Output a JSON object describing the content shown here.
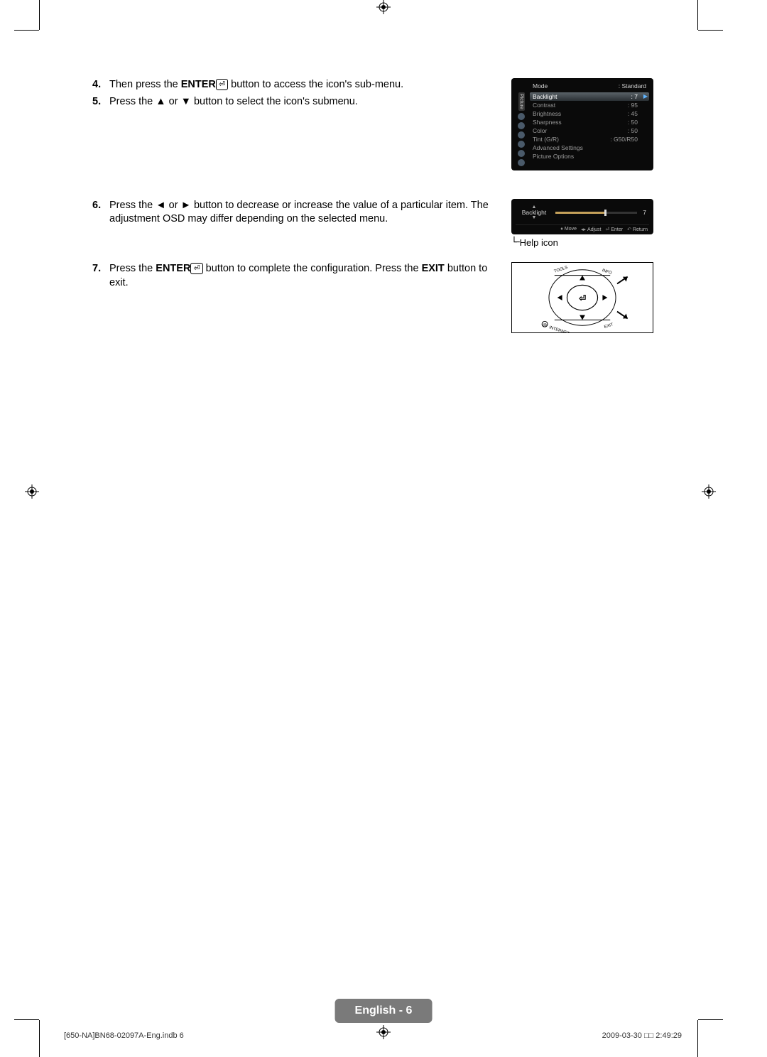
{
  "steps": {
    "s4": {
      "num": "4.",
      "pre": "Then press the ",
      "bold1": "ENTER",
      "post": " button to access the icon's sub-menu."
    },
    "s5": {
      "num": "5.",
      "text": "Press the ▲ or ▼ button to select the icon's submenu."
    },
    "s6": {
      "num": "6.",
      "text": "Press the ◄ or ► button to decrease or increase the value of a particular item. The adjustment OSD may differ depending on the selected menu."
    },
    "s7": {
      "num": "7.",
      "pre": "Press the ",
      "bold1": "ENTER",
      "mid": " button to complete the configuration. Press the ",
      "bold2": "EXIT",
      "post": " button to exit."
    }
  },
  "osd_menu": {
    "tab": "Picture",
    "header_label": "Mode",
    "header_value": ": Standard",
    "items": [
      {
        "label": "Backlight",
        "value": ": 7",
        "selected": true
      },
      {
        "label": "Contrast",
        "value": ": 95"
      },
      {
        "label": "Brightness",
        "value": ": 45"
      },
      {
        "label": "Sharpness",
        "value": ": 50"
      },
      {
        "label": "Color",
        "value": ": 50"
      },
      {
        "label": "Tint (G/R)",
        "value": ": G50/R50"
      },
      {
        "label": "Advanced Settings",
        "value": ""
      },
      {
        "label": "Picture Options",
        "value": ""
      }
    ]
  },
  "osd_slider": {
    "label": "Backlight",
    "value": "7",
    "fill_percent": 60,
    "track_color": "#c5a15a",
    "help": [
      {
        "sym": "♦",
        "text": "Move"
      },
      {
        "sym": "◂▸",
        "text": "Adjust"
      },
      {
        "sym": "⏎",
        "text": "Enter"
      },
      {
        "sym": "↶",
        "text": "Return"
      }
    ]
  },
  "help_icon_label": "Help icon",
  "page_badge": "English - 6",
  "footer": {
    "left": "[650-NA]BN68-02097A-Eng.indb   6",
    "right": "2009-03-30   □□ 2:49:29"
  },
  "colors": {
    "osd_bg": "#0a0a0a",
    "osd_text": "#d8d8d8",
    "osd_dim": "#9a9a9a",
    "osd_accent": "#5fb4ff",
    "badge_bg": "#7a7a7a"
  }
}
